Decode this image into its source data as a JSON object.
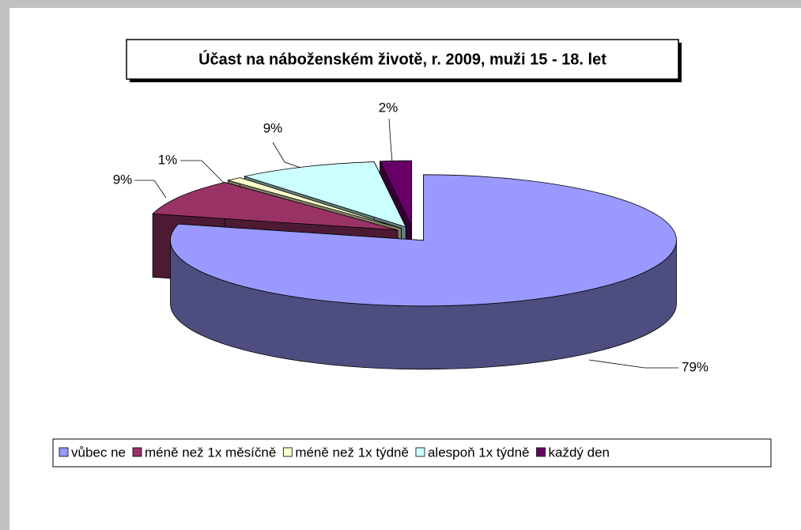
{
  "chart_data": {
    "type": "pie3d",
    "title": "Účast na náboženském životě, r. 2009, muži 15 - 18. let",
    "categories": [
      "vůbec ne",
      "méně než 1x měsíčně",
      "méně než 1x týdně",
      "alespoň 1x týdně",
      "každý den"
    ],
    "values": [
      79,
      9,
      1,
      9,
      2
    ],
    "value_labels": [
      "79%",
      "9%",
      "1%",
      "9%",
      "2%"
    ],
    "colors": [
      "#9999ff",
      "#993366",
      "#ffffcc",
      "#ccffff",
      "#660066"
    ],
    "legend": "bottom"
  }
}
